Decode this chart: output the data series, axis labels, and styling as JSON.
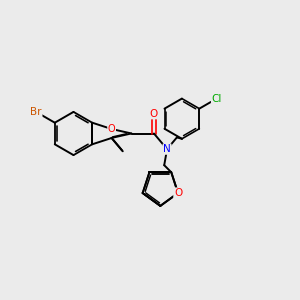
{
  "background_color": "#ebebeb",
  "bond_color": "#000000",
  "atom_colors": {
    "Br": "#cc5500",
    "O": "#ff0000",
    "N": "#0000ff",
    "Cl": "#00aa00",
    "C": "#000000"
  },
  "figsize": [
    3.0,
    3.0
  ],
  "dpi": 100
}
